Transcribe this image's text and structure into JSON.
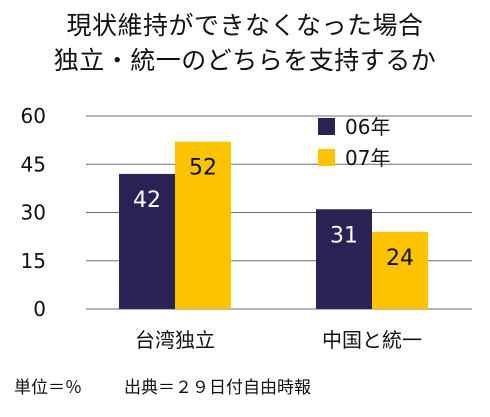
{
  "chart_data": {
    "type": "bar",
    "title": [
      "現状維持ができなくなった場合",
      "独立・統一のどちらを支持するか"
    ],
    "categories": [
      "台湾独立",
      "中国と統一"
    ],
    "series": [
      {
        "name": "06年",
        "values": [
          42,
          31
        ],
        "color": "#2a2155",
        "label_color": "#ffffff"
      },
      {
        "name": "07年",
        "values": [
          52,
          24
        ],
        "color": "#fcc300",
        "label_color": "#111111"
      }
    ],
    "ylim": [
      0,
      60
    ],
    "yticks": [
      0,
      15,
      30,
      45,
      60
    ],
    "grid": true,
    "legend_position": "top-right"
  },
  "footer": {
    "unit": "単位＝％",
    "source": "出典＝２９日付自由時報"
  }
}
